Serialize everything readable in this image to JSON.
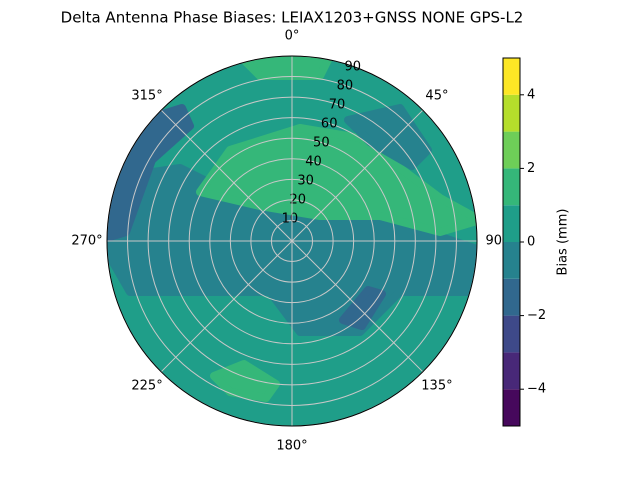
{
  "chart_data": {
    "type": "polar_contour",
    "title": "Delta Antenna Phase Biases: LEIAX1203+GNSS  NONE GPS-L2",
    "thetaticks": [
      {
        "value": 0,
        "label": "0°"
      },
      {
        "value": 45,
        "label": "45°"
      },
      {
        "value": 90,
        "label": "90°"
      },
      {
        "value": 135,
        "label": "135°"
      },
      {
        "value": 180,
        "label": "180°"
      },
      {
        "value": 225,
        "label": "225°"
      },
      {
        "value": 270,
        "label": "270°"
      },
      {
        "value": 315,
        "label": "315°"
      }
    ],
    "rlim": [
      0,
      90
    ],
    "rticks": [
      10,
      20,
      30,
      40,
      50,
      60,
      70,
      80,
      90
    ],
    "grid": true,
    "levels": [
      -5,
      -4,
      -3,
      -2,
      -1,
      0,
      1,
      2,
      3,
      4,
      5
    ],
    "colors": [
      "#46085c",
      "#482878",
      "#3e4989",
      "#31688e",
      "#26828e",
      "#1f9e89",
      "#35b779",
      "#6ece58",
      "#b5de2b",
      "#fde725"
    ],
    "regions": [
      0,
      -1,
      1,
      1,
      -2,
      -1,
      -2,
      1
    ],
    "colorbar_label": "Bias (mm)",
    "colorbar_ticks": [
      {
        "value": -4,
        "label": "−4"
      },
      {
        "value": -2,
        "label": "−2"
      },
      0,
      2,
      4
    ]
  }
}
